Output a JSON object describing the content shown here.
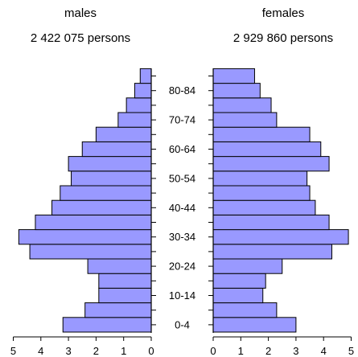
{
  "header": {
    "left_title": "males",
    "left_total": "2 422 075 persons",
    "right_title": "females",
    "right_total": "2 929 860 persons"
  },
  "chart_data": {
    "type": "bar",
    "orientation": "horizontal",
    "layout": "population-pyramid",
    "categories": [
      "0-4",
      "5-9",
      "10-14",
      "15-19",
      "20-24",
      "25-29",
      "30-34",
      "35-39",
      "40-44",
      "45-49",
      "50-54",
      "55-59",
      "60-64",
      "65-69",
      "70-74",
      "75-79",
      "80-84",
      "85-89"
    ],
    "category_labels_shown": [
      "0-4",
      "10-14",
      "20-24",
      "30-34",
      "40-44",
      "50-54",
      "60-64",
      "70-74",
      "80-84"
    ],
    "series": [
      {
        "name": "males",
        "values": [
          3.2,
          2.4,
          1.9,
          1.9,
          2.3,
          4.4,
          4.8,
          4.2,
          3.6,
          3.3,
          2.9,
          3.0,
          2.5,
          2.0,
          1.2,
          0.9,
          0.6,
          0.4
        ]
      },
      {
        "name": "females",
        "values": [
          3.0,
          2.3,
          1.8,
          1.9,
          2.5,
          4.3,
          4.9,
          4.2,
          3.7,
          3.5,
          3.4,
          4.2,
          3.9,
          3.5,
          2.3,
          2.1,
          1.7,
          1.5
        ]
      }
    ],
    "xlim": [
      0,
      5
    ],
    "left_ticks": [
      "5",
      "4",
      "3",
      "2",
      "1",
      "0"
    ],
    "right_ticks": [
      "0",
      "1",
      "2",
      "3",
      "4",
      "5"
    ],
    "bar_color": "#9999ff",
    "edge_color": "#000000"
  }
}
